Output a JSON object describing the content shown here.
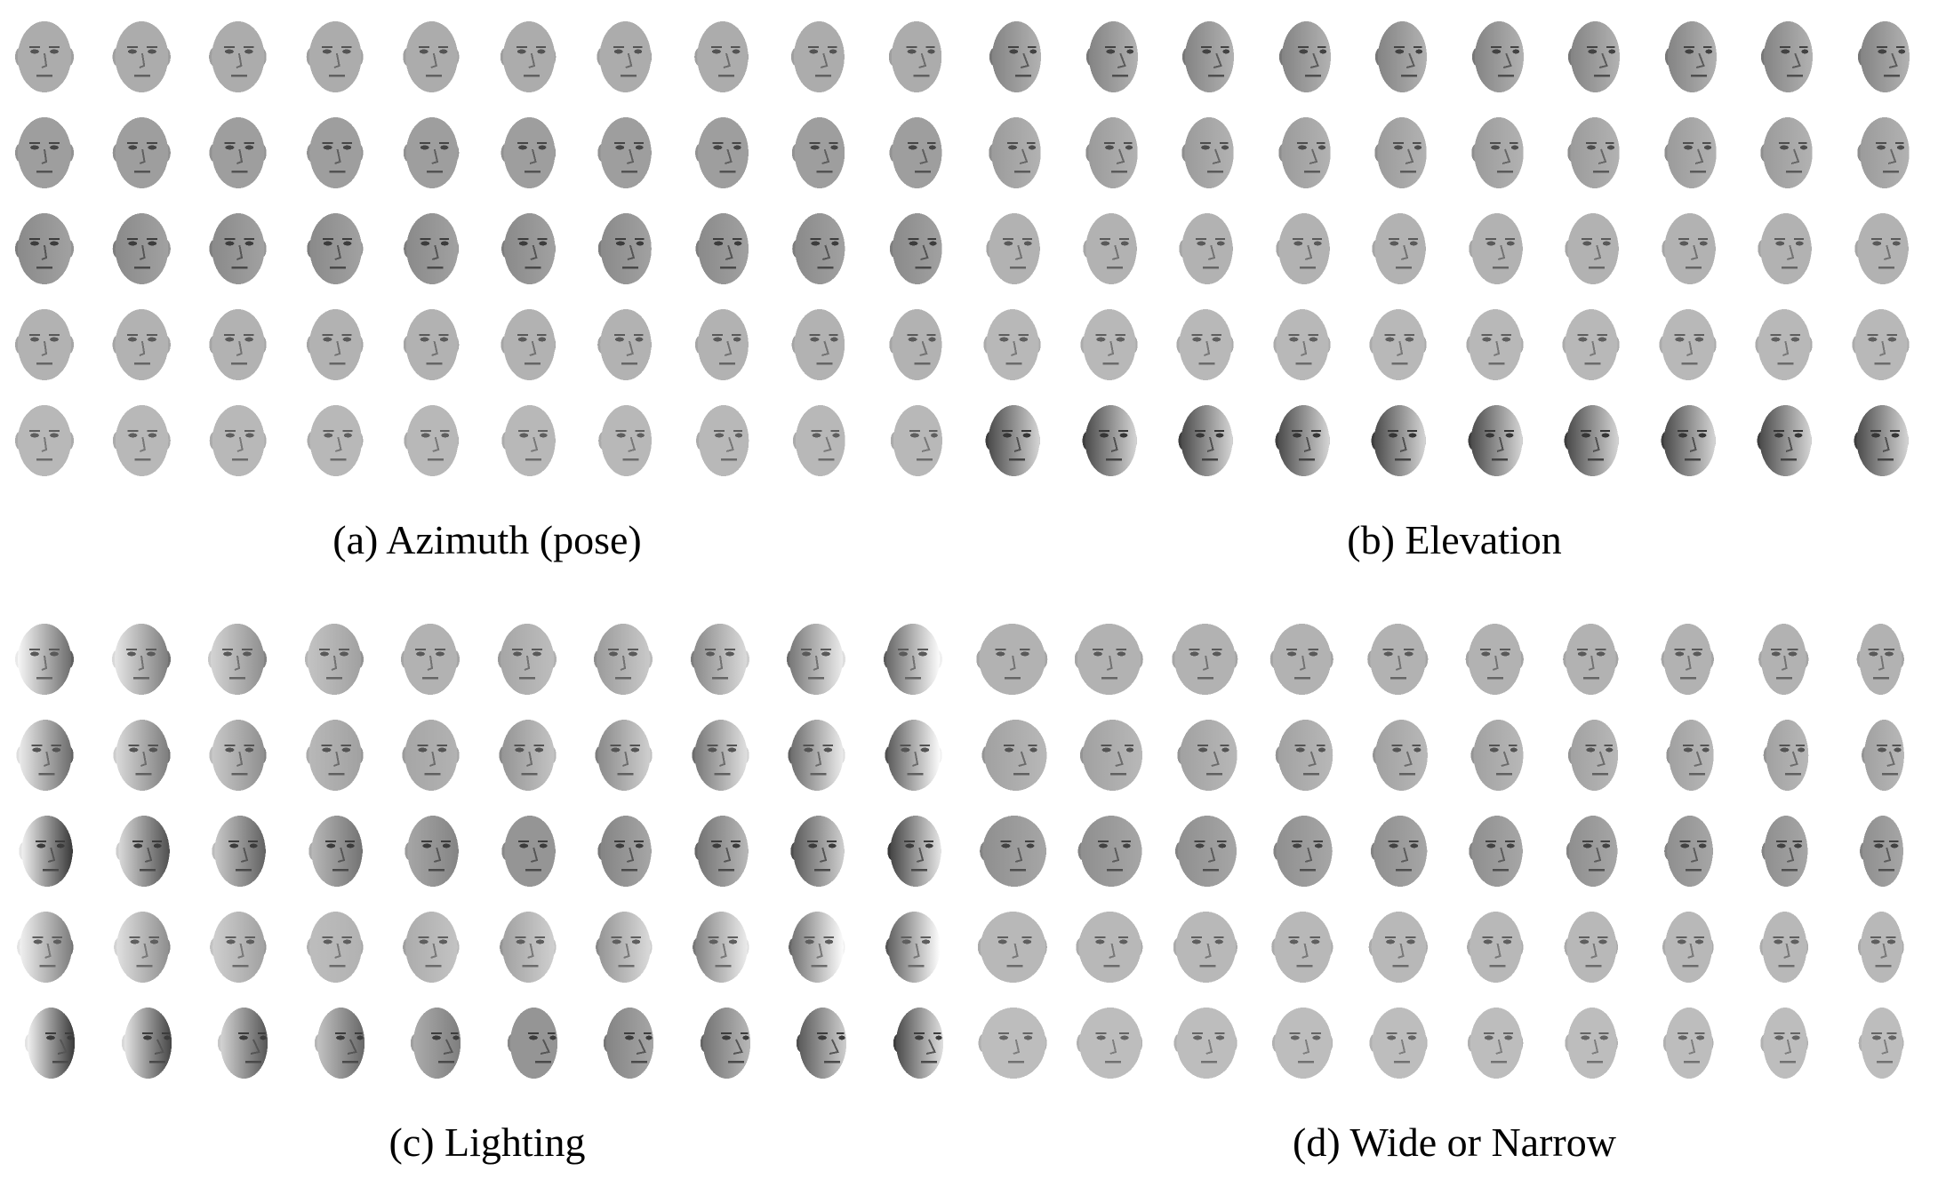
{
  "figure": {
    "rows_per_panel": 5,
    "columns_per_panel": 10,
    "panels": [
      {
        "id": "a",
        "caption": "(a) Azimuth (pose)",
        "row_sweep": [
          {
            "yaw": [
              0.0,
              0.04,
              0.08,
              0.12,
              0.16,
              0.2,
              0.24,
              0.29,
              0.34,
              0.4
            ],
            "light": [
              0.0,
              0.0,
              0.0,
              0.0,
              0.0,
              0.0,
              0.0,
              0.0,
              0.0,
              0.0
            ],
            "tone": 0.5
          },
          {
            "yaw": [
              0.0,
              0.05,
              0.1,
              0.15,
              0.2,
              0.25,
              0.3,
              0.35,
              0.4,
              0.45
            ],
            "light": [
              0.0,
              0.0,
              0.0,
              0.0,
              0.0,
              0.0,
              0.0,
              0.0,
              0.0,
              0.0
            ],
            "tone": 0.38
          },
          {
            "yaw": [
              0.0,
              0.05,
              0.1,
              0.16,
              0.22,
              0.28,
              0.33,
              0.38,
              0.43,
              0.48
            ],
            "light": [
              0.1,
              0.1,
              0.1,
              0.1,
              0.1,
              0.1,
              0.1,
              0.1,
              0.1,
              0.1
            ],
            "tone": 0.3
          },
          {
            "yaw": [
              0.0,
              0.04,
              0.09,
              0.14,
              0.19,
              0.24,
              0.29,
              0.34,
              0.39,
              0.44
            ],
            "light": [
              0.0,
              0.0,
              0.0,
              0.0,
              0.0,
              0.0,
              0.0,
              0.0,
              0.0,
              0.0
            ],
            "tone": 0.55
          },
          {
            "yaw": [
              0.0,
              0.06,
              0.12,
              0.18,
              0.24,
              0.3,
              0.36,
              0.42,
              0.48,
              0.54
            ],
            "light": [
              0.0,
              0.0,
              0.0,
              0.0,
              0.0,
              0.0,
              0.0,
              0.0,
              0.0,
              0.0
            ],
            "tone": 0.6
          }
        ]
      },
      {
        "id": "b",
        "caption": "(b) Elevation",
        "row_sweep": [
          {
            "yaw": [
              0.55,
              0.55,
              0.55,
              0.55,
              0.55,
              0.55,
              0.55,
              0.55,
              0.55,
              0.55
            ],
            "light": [
              0.2,
              0.2,
              0.2,
              0.2,
              0.2,
              0.2,
              0.2,
              0.2,
              0.2,
              0.2
            ],
            "tone": 0.35
          },
          {
            "yaw": [
              0.5,
              0.5,
              0.5,
              0.5,
              0.5,
              0.5,
              0.5,
              0.5,
              0.5,
              0.5
            ],
            "light": [
              0.1,
              0.1,
              0.1,
              0.1,
              0.1,
              0.1,
              0.1,
              0.1,
              0.1,
              0.1
            ],
            "tone": 0.45
          },
          {
            "yaw": [
              0.3,
              0.3,
              0.3,
              0.3,
              0.3,
              0.3,
              0.3,
              0.3,
              0.3,
              0.3
            ],
            "light": [
              0.0,
              0.0,
              0.0,
              0.0,
              0.0,
              0.0,
              0.0,
              0.0,
              0.0,
              0.0
            ],
            "tone": 0.55
          },
          {
            "yaw": [
              0.1,
              0.1,
              0.1,
              0.1,
              0.1,
              0.1,
              0.1,
              0.1,
              0.1,
              0.1
            ],
            "light": [
              0.0,
              0.0,
              0.0,
              0.0,
              0.0,
              0.0,
              0.0,
              0.0,
              0.0,
              0.0
            ],
            "tone": 0.6
          },
          {
            "yaw": [
              0.25,
              0.25,
              0.25,
              0.25,
              0.25,
              0.25,
              0.25,
              0.25,
              0.25,
              0.25
            ],
            "light": [
              0.6,
              0.6,
              0.6,
              0.6,
              0.6,
              0.6,
              0.6,
              0.6,
              0.6,
              0.6
            ],
            "tone": 0.25
          }
        ]
      },
      {
        "id": "c",
        "caption": "(c) Lighting",
        "row_sweep": [
          {
            "yaw": [
              0.0,
              0.0,
              0.0,
              0.0,
              0.0,
              0.0,
              0.0,
              0.0,
              0.0,
              0.0
            ],
            "light": [
              -0.6,
              -0.45,
              -0.3,
              -0.15,
              0.0,
              0.1,
              0.2,
              0.35,
              0.5,
              0.65
            ],
            "tone": 0.55
          },
          {
            "yaw": [
              0.1,
              0.1,
              0.1,
              0.1,
              0.1,
              0.1,
              0.1,
              0.1,
              0.1,
              0.1
            ],
            "light": [
              -0.55,
              -0.4,
              -0.25,
              -0.1,
              0.05,
              0.2,
              0.3,
              0.45,
              0.55,
              0.7
            ],
            "tone": 0.5
          },
          {
            "yaw": [
              0.3,
              0.3,
              0.3,
              0.3,
              0.3,
              0.3,
              0.3,
              0.3,
              0.3,
              0.3
            ],
            "light": [
              -0.8,
              -0.6,
              -0.45,
              -0.3,
              -0.15,
              0.0,
              0.15,
              0.3,
              0.5,
              0.7
            ],
            "tone": 0.3
          },
          {
            "yaw": [
              0.15,
              0.15,
              0.15,
              0.15,
              0.15,
              0.15,
              0.15,
              0.15,
              0.15,
              0.15
            ],
            "light": [
              -0.5,
              -0.35,
              -0.2,
              -0.05,
              0.1,
              0.2,
              0.3,
              0.45,
              0.6,
              0.75
            ],
            "tone": 0.6
          },
          {
            "yaw": [
              0.75,
              0.75,
              0.75,
              0.75,
              0.75,
              0.75,
              0.75,
              0.75,
              0.75,
              0.75
            ],
            "light": [
              -0.8,
              -0.7,
              -0.55,
              -0.4,
              -0.2,
              0.0,
              0.15,
              0.3,
              0.5,
              0.65
            ],
            "tone": 0.3
          }
        ]
      },
      {
        "id": "d",
        "caption": "(d) Wide or Narrow",
        "row_sweep": [
          {
            "yaw": [
              0.05,
              0.05,
              0.05,
              0.05,
              0.05,
              0.05,
              0.05,
              0.05,
              0.05,
              0.05
            ],
            "light": [
              0.0,
              0.0,
              0.0,
              0.0,
              0.0,
              0.0,
              0.0,
              0.0,
              0.0,
              0.0
            ],
            "tone": 0.55
          },
          {
            "yaw": [
              0.45,
              0.45,
              0.45,
              0.45,
              0.45,
              0.45,
              0.45,
              0.45,
              0.45,
              0.45
            ],
            "light": [
              0.1,
              0.1,
              0.1,
              0.1,
              0.1,
              0.1,
              0.1,
              0.1,
              0.1,
              0.1
            ],
            "tone": 0.5
          },
          {
            "yaw": [
              0.3,
              0.3,
              0.3,
              0.3,
              0.3,
              0.3,
              0.3,
              0.3,
              0.3,
              0.3
            ],
            "light": [
              0.1,
              0.1,
              0.1,
              0.1,
              0.1,
              0.1,
              0.1,
              0.1,
              0.1,
              0.1
            ],
            "tone": 0.35
          },
          {
            "yaw": [
              0.15,
              0.15,
              0.15,
              0.15,
              0.15,
              0.15,
              0.15,
              0.15,
              0.15,
              0.15
            ],
            "light": [
              0.0,
              0.0,
              0.0,
              0.0,
              0.0,
              0.0,
              0.0,
              0.0,
              0.0,
              0.0
            ],
            "tone": 0.6
          },
          {
            "yaw": [
              0.2,
              0.2,
              0.2,
              0.2,
              0.2,
              0.2,
              0.2,
              0.2,
              0.2,
              0.2
            ],
            "light": [
              0.0,
              0.0,
              0.0,
              0.0,
              0.0,
              0.0,
              0.0,
              0.0,
              0.0,
              0.0
            ],
            "tone": 0.65
          }
        ],
        "width_sweep": [
          1.25,
          1.2,
          1.15,
          1.1,
          1.05,
          1.0,
          0.95,
          0.9,
          0.85,
          0.8
        ]
      }
    ]
  }
}
